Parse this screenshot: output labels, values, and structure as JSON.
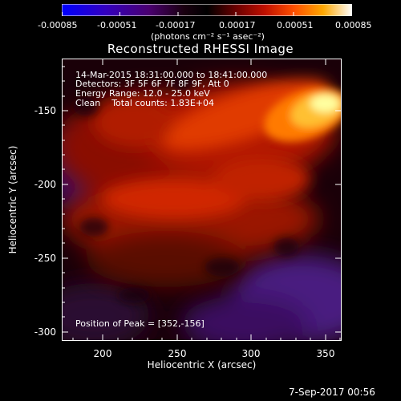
{
  "colorbar": {
    "ticks": [
      "-0.00085",
      "-0.00051",
      "-0.00017",
      "0.00017",
      "0.00051",
      "0.00085"
    ],
    "units": "(photons cm⁻² s⁻¹ asec⁻²)",
    "colors": [
      "#0000ff",
      "#3a00b0",
      "#5a0060",
      "#000000",
      "#6a0000",
      "#c00000",
      "#ff4000",
      "#ff9a00",
      "#ffe060",
      "#ffffff"
    ]
  },
  "title": "Reconstructed RHESSI Image",
  "info": {
    "line1": "14-Mar-2015 18:31:00.000 to 18:41:00.000",
    "line2": "Detectors: 3F 5F 6F 7F 8F 9F, Att 0",
    "line3": "Energy Range: 12.0 - 25.0 keV",
    "line4": "Clean    Total counts: 1.83E+04"
  },
  "peak": "Position of Peak = [352,-156]",
  "axes": {
    "xlabel": "Heliocentric X (arcsec)",
    "ylabel": "Heliocentric Y (arcsec)",
    "xticks": [
      "200",
      "250",
      "300",
      "350"
    ],
    "yticks": [
      "-150",
      "-200",
      "-250",
      "-300"
    ]
  },
  "footer": "7-Sep-2017 00:56"
}
